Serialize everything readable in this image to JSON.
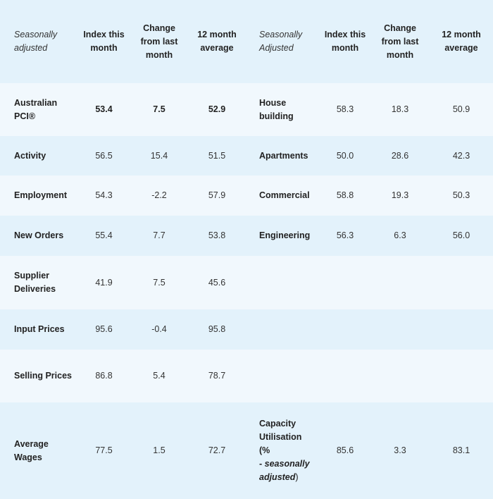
{
  "header": {
    "left_label": "Seasonally adjusted",
    "right_label": "Seasonally Adjusted",
    "index_col": "Index this month",
    "change_col": "Change from last month",
    "avg_col": "12 month average"
  },
  "rows": [
    {
      "name": "Australian PCI®",
      "index": "53.4",
      "change": "7.5",
      "avg": "52.9",
      "r_name": "House building",
      "r_index": "58.3",
      "r_change": "18.3",
      "r_avg": "50.9"
    },
    {
      "name": "Activity",
      "index": "56.5",
      "change": "15.4",
      "avg": "51.5",
      "r_name": "Apartments",
      "r_index": "50.0",
      "r_change": "28.6",
      "r_avg": "42.3"
    },
    {
      "name": "Employment",
      "index": "54.3",
      "change": "-2.2",
      "avg": "57.9",
      "r_name": "Commercial",
      "r_index": "58.8",
      "r_change": "19.3",
      "r_avg": "50.3"
    },
    {
      "name": "New Orders",
      "index": "55.4",
      "change": "7.7",
      "avg": "53.8",
      "r_name": "Engineering",
      "r_index": "56.3",
      "r_change": "6.3",
      "r_avg": "56.0"
    },
    {
      "name": "Supplier Deliveries",
      "index": "41.9",
      "change": "7.5",
      "avg": "45.6"
    },
    {
      "name": "Input Prices",
      "index": "95.6",
      "change": "-0.4",
      "avg": "95.8"
    },
    {
      "name": "Selling Prices",
      "index": "86.8",
      "change": "5.4",
      "avg": "78.7"
    },
    {
      "name": "Average Wages",
      "index": "77.5",
      "change": "1.5",
      "avg": "72.7",
      "r_index": "85.6",
      "r_change": "3.3",
      "r_avg": "83.1"
    }
  ],
  "capacity": {
    "name": "Capacity Utilisation",
    "paren_open": "(%",
    "dash": "- ",
    "italic_part": "seasonally adjusted",
    "paren_close": ")"
  }
}
